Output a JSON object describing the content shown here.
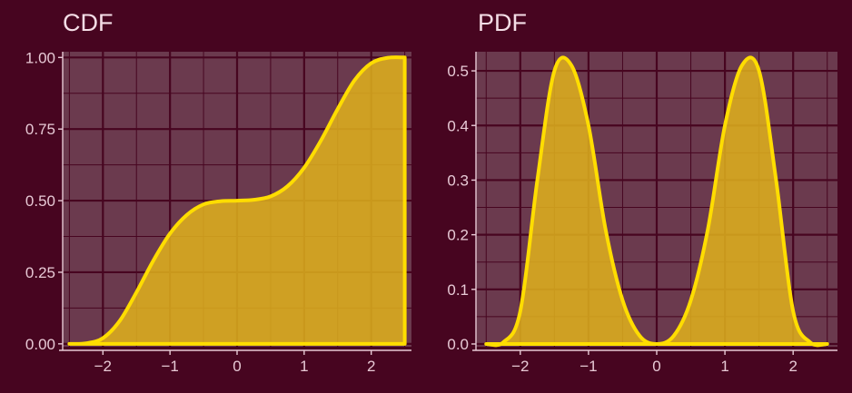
{
  "chart_data": [
    {
      "type": "area",
      "title": "CDF",
      "xlabel": "",
      "ylabel": "",
      "xlim": [
        -2.6,
        2.6
      ],
      "ylim": [
        -0.01,
        1.02
      ],
      "x_ticks": [
        -2,
        -1,
        0,
        1,
        2
      ],
      "x_tick_labels": [
        "−2",
        "−1",
        "0",
        "1",
        "2"
      ],
      "y_ticks": [
        0,
        0.25,
        0.5,
        0.75,
        1
      ],
      "y_tick_labels": [
        "0.00",
        "0.25",
        "0.50",
        "0.75",
        "1.00"
      ],
      "grid": true,
      "legend": "none",
      "line_color": "#ffdd00",
      "fill_color": "#e0b31c",
      "x": [
        -2.5,
        -2.25,
        -2.0,
        -1.75,
        -1.5,
        -1.25,
        -1.0,
        -0.75,
        -0.5,
        -0.25,
        0.0,
        0.25,
        0.5,
        0.75,
        1.0,
        1.25,
        1.5,
        1.75,
        2.0,
        2.25,
        2.5
      ],
      "y": [
        0.0,
        0.002,
        0.02,
        0.08,
        0.18,
        0.29,
        0.385,
        0.45,
        0.487,
        0.498,
        0.5,
        0.503,
        0.515,
        0.55,
        0.615,
        0.71,
        0.82,
        0.92,
        0.98,
        0.999,
        1.0
      ]
    },
    {
      "type": "area",
      "title": "PDF",
      "xlabel": "",
      "ylabel": "",
      "xlim": [
        -2.65,
        2.65
      ],
      "ylim": [
        -0.005,
        0.535
      ],
      "x_ticks": [
        -2,
        -1,
        0,
        1,
        2
      ],
      "x_tick_labels": [
        "−2",
        "−1",
        "0",
        "1",
        "2"
      ],
      "y_ticks": [
        0,
        0.1,
        0.2,
        0.3,
        0.4,
        0.5
      ],
      "y_tick_labels": [
        "0.0",
        "0.1",
        "0.2",
        "0.3",
        "0.4",
        "0.5"
      ],
      "grid": true,
      "legend": "none",
      "line_color": "#ffdd00",
      "fill_color": "#e0b31c",
      "x": [
        -2.5,
        -2.25,
        -2.0,
        -1.75,
        -1.5,
        -1.25,
        -1.0,
        -0.75,
        -0.5,
        -0.25,
        0.0,
        0.25,
        0.5,
        0.75,
        1.0,
        1.25,
        1.5,
        1.75,
        2.0,
        2.25,
        2.5
      ],
      "y": [
        0.0,
        0.003,
        0.06,
        0.3,
        0.5,
        0.51,
        0.4,
        0.21,
        0.08,
        0.015,
        0.0,
        0.015,
        0.08,
        0.21,
        0.4,
        0.51,
        0.5,
        0.3,
        0.06,
        0.003,
        0.0
      ]
    }
  ]
}
